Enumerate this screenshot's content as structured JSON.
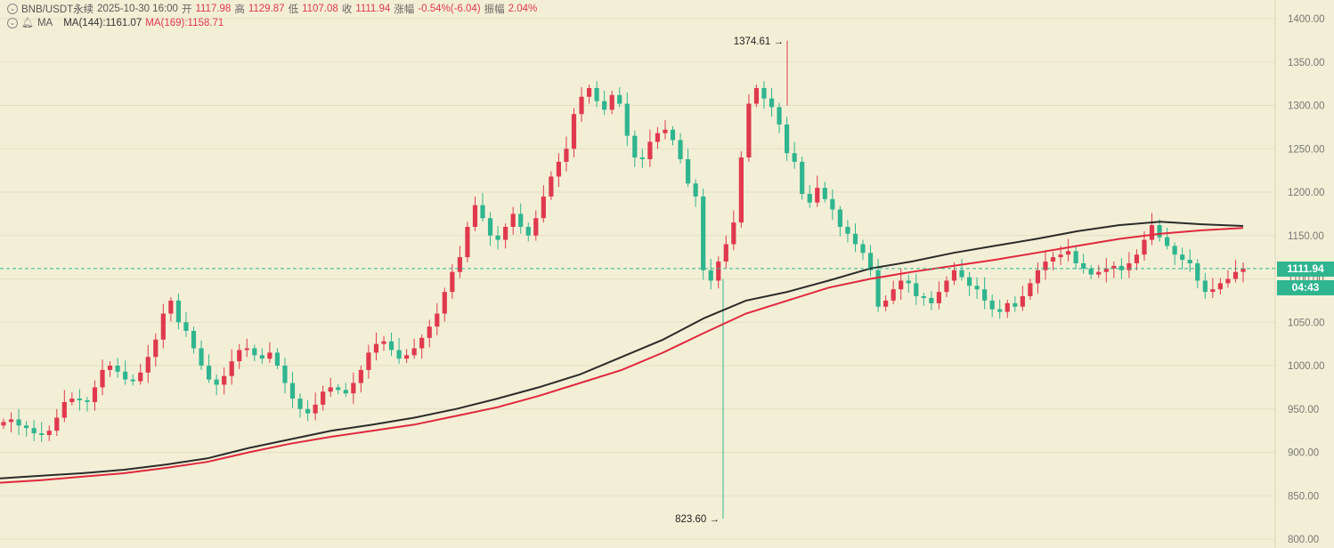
{
  "header": {
    "symbol": "BNB/USDT永续",
    "datetime": "2025-10-30 16:00",
    "open_label": "开",
    "open": "1117.98",
    "high_label": "高",
    "high": "1129.87",
    "low_label": "低",
    "low": "1107.08",
    "close_label": "收",
    "close": "1111.94",
    "change_label": "涨幅",
    "change": "-0.54%(-6.04)",
    "amp_label": "振幅",
    "amp": "2.04%",
    "ma_label": "MA",
    "ma144": "MA(144):1161.07",
    "ma169": "MA(169):1158.71"
  },
  "price_tag": {
    "price": "1111.94",
    "countdown": "04:43"
  },
  "colors": {
    "bg": "#f3efd6",
    "up": "#e0394d",
    "down": "#2fb58f",
    "ma144": "#2b2b2b",
    "ma169": "#e0283c",
    "grid": "#e4dfc3"
  },
  "chart_data": {
    "type": "candlestick",
    "title": "BNB/USDT永续",
    "ylim": [
      800,
      1400
    ],
    "y_ticks": [
      "1400.00",
      "1350.00",
      "1300.00",
      "1250.00",
      "1200.00",
      "1150.00",
      "1100.00",
      "1050.00",
      "1000.00",
      "950.00",
      "900.00",
      "850.00",
      "800.00"
    ],
    "annotations": {
      "high": "1374.61",
      "low": "823.60"
    },
    "current_price": 1111.94,
    "close_series": [
      935,
      938,
      931,
      928,
      922,
      920,
      925,
      940,
      958,
      962,
      960,
      958,
      975,
      995,
      1000,
      993,
      984,
      982,
      992,
      1010,
      1030,
      1060,
      1075,
      1050,
      1040,
      1020,
      1000,
      984,
      978,
      988,
      1005,
      1018,
      1020,
      1012,
      1008,
      1015,
      1000,
      980,
      962,
      950,
      945,
      955,
      970,
      975,
      972,
      968,
      980,
      995,
      1015,
      1025,
      1028,
      1018,
      1008,
      1012,
      1020,
      1032,
      1045,
      1060,
      1085,
      1108,
      1125,
      1160,
      1185,
      1170,
      1150,
      1145,
      1160,
      1175,
      1160,
      1150,
      1170,
      1195,
      1218,
      1235,
      1250,
      1290,
      1310,
      1320,
      1305,
      1295,
      1312,
      1302,
      1265,
      1240,
      1238,
      1258,
      1268,
      1272,
      1260,
      1238,
      1210,
      1195,
      1110,
      1098,
      1120,
      1140,
      1165,
      1240,
      1302,
      1320,
      1308,
      1298,
      1278,
      1245,
      1235,
      1198,
      1188,
      1205,
      1192,
      1180,
      1160,
      1152,
      1140,
      1130,
      1110,
      1068,
      1075,
      1088,
      1098,
      1095,
      1080,
      1078,
      1072,
      1085,
      1098,
      1110,
      1102,
      1092,
      1088,
      1075,
      1065,
      1062,
      1072,
      1068,
      1080,
      1095,
      1110,
      1120,
      1125,
      1128,
      1132,
      1118,
      1112,
      1105,
      1108,
      1112,
      1115,
      1110,
      1118,
      1128,
      1145,
      1162,
      1148,
      1138,
      1128,
      1122,
      1118,
      1098,
      1085,
      1088,
      1095,
      1100,
      1108,
      1112
    ],
    "series": [
      {
        "name": "MA(144)",
        "values": [
          870,
          873,
          876,
          880,
          886,
          893,
          905,
          915,
          925,
          932,
          940,
          950,
          962,
          975,
          990,
          1010,
          1030,
          1055,
          1075,
          1085,
          1098,
          1112,
          1120,
          1130,
          1138,
          1146,
          1155,
          1162,
          1166,
          1163,
          1161.07
        ]
      },
      {
        "name": "MA(169)",
        "values": [
          865,
          868,
          872,
          876,
          882,
          889,
          900,
          910,
          918,
          925,
          932,
          942,
          952,
          965,
          980,
          995,
          1015,
          1038,
          1060,
          1075,
          1090,
          1100,
          1108,
          1115,
          1122,
          1130,
          1138,
          1146,
          1152,
          1156,
          1158.71
        ]
      }
    ]
  }
}
